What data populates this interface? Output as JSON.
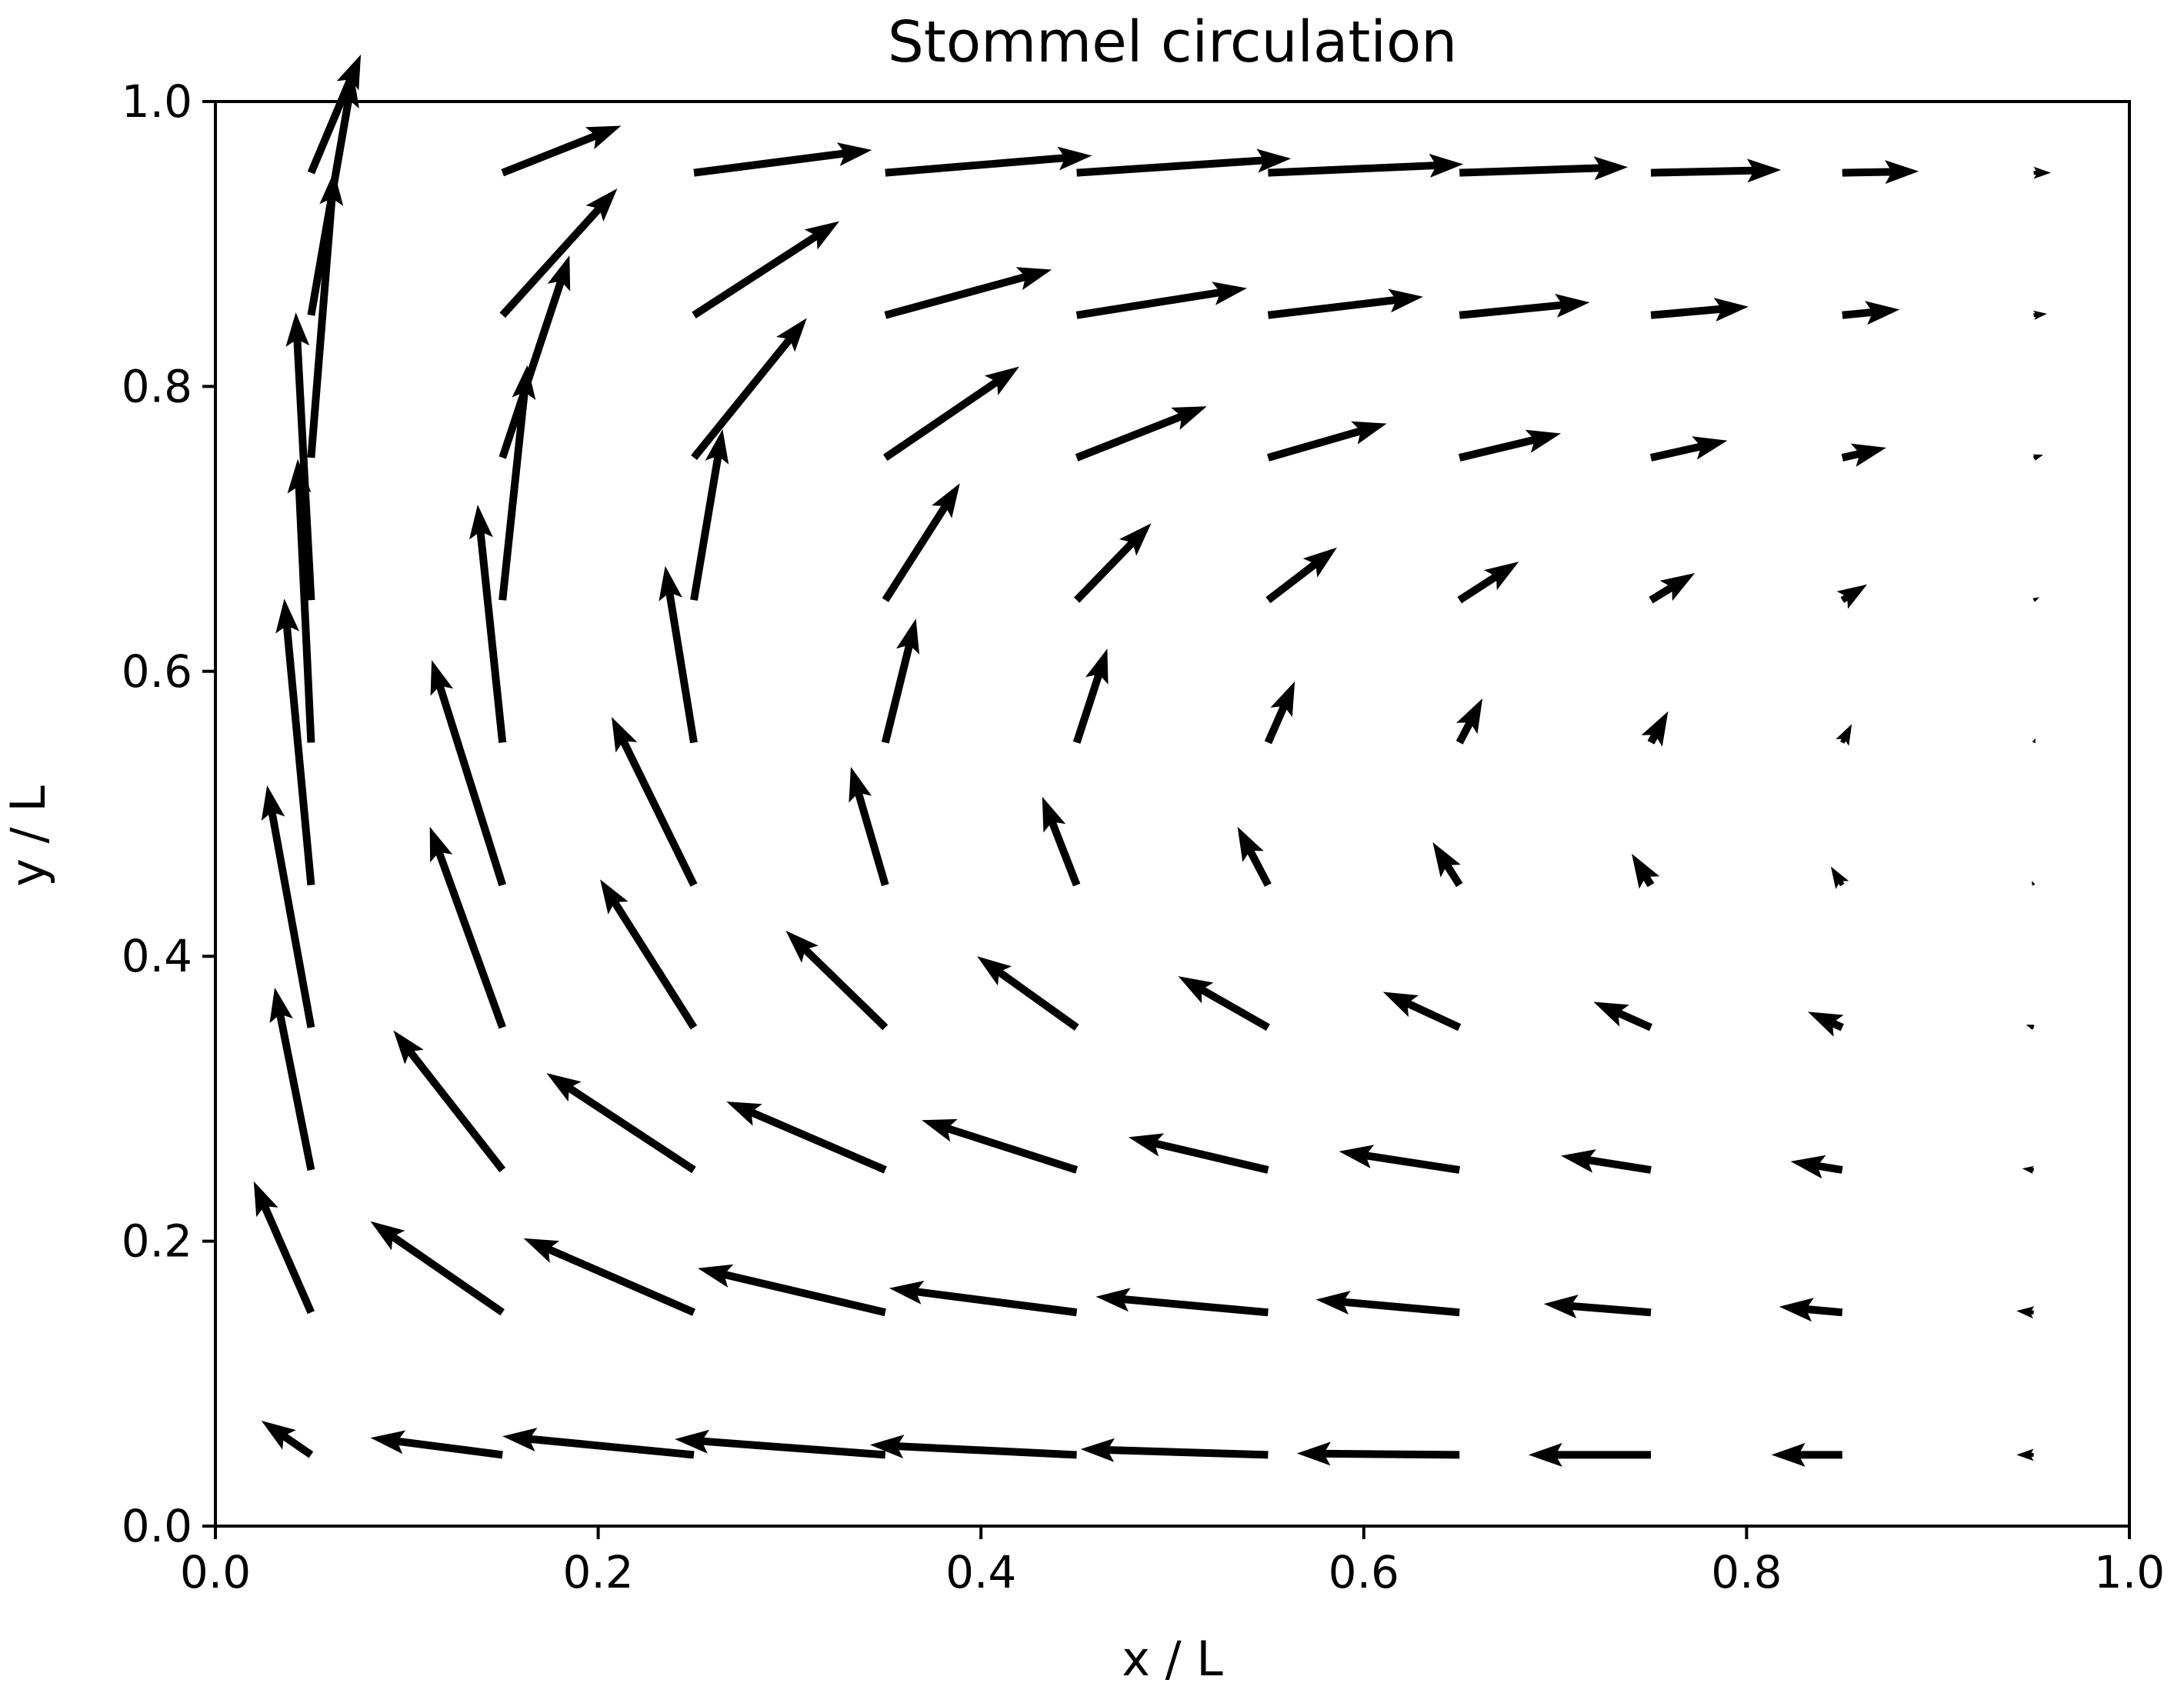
{
  "chart_data": {
    "type": "quiver",
    "title": "Stommel circulation",
    "xlabel": "x / L",
    "ylabel": "y / L",
    "xlim": [
      0.0,
      1.0
    ],
    "ylim": [
      0.0,
      1.0
    ],
    "xticks": [
      "0.0",
      "0.2",
      "0.4",
      "0.6",
      "0.8",
      "1.0"
    ],
    "yticks": [
      "0.0",
      "0.2",
      "0.4",
      "0.6",
      "0.8",
      "1.0"
    ],
    "grid": false,
    "x": [
      0.05,
      0.15,
      0.25,
      0.35,
      0.45,
      0.55,
      0.65,
      0.75,
      0.85,
      0.95
    ],
    "y": [
      0.05,
      0.15,
      0.25,
      0.35,
      0.45,
      0.55,
      0.65,
      0.75,
      0.85,
      0.95
    ],
    "u": [
      [
        -0.026,
        -0.069,
        -0.1,
        -0.11,
        -0.108,
        -0.098,
        -0.085,
        -0.064,
        -0.037,
        -0.009
      ],
      [
        -0.03,
        -0.069,
        -0.089,
        -0.098,
        -0.098,
        -0.09,
        -0.075,
        -0.056,
        -0.033,
        -0.009
      ],
      [
        -0.019,
        -0.057,
        -0.077,
        -0.083,
        -0.081,
        -0.073,
        -0.063,
        -0.047,
        -0.027,
        -0.006
      ],
      [
        -0.023,
        -0.038,
        -0.049,
        -0.052,
        -0.052,
        -0.047,
        -0.04,
        -0.03,
        -0.018,
        -0.004
      ],
      [
        -0.014,
        -0.037,
        -0.043,
        -0.018,
        -0.018,
        -0.016,
        -0.014,
        -0.01,
        -0.006,
        -0.001
      ],
      [
        -0.007,
        -0.013,
        -0.015,
        0.016,
        0.016,
        0.014,
        0.012,
        0.009,
        0.005,
        0.001
      ],
      [
        -0.008,
        0.013,
        0.015,
        0.039,
        0.039,
        0.036,
        0.031,
        0.023,
        0.013,
        0.003
      ],
      [
        0.012,
        0.035,
        0.059,
        0.07,
        0.068,
        0.062,
        0.053,
        0.04,
        0.023,
        0.005
      ],
      [
        0.022,
        0.06,
        0.076,
        0.087,
        0.089,
        0.081,
        0.068,
        0.051,
        0.03,
        0.007
      ],
      [
        0.026,
        0.062,
        0.093,
        0.108,
        0.112,
        0.102,
        0.088,
        0.068,
        0.04,
        0.009
      ]
    ],
    "v": [
      [
        0.024,
        0.012,
        0.013,
        0.011,
        0.007,
        0.004,
        0.001,
        0.0,
        0.0,
        0.0
      ],
      [
        0.092,
        0.064,
        0.052,
        0.031,
        0.017,
        0.011,
        0.009,
        0.006,
        0.004,
        0.001
      ],
      [
        0.128,
        0.098,
        0.068,
        0.048,
        0.035,
        0.023,
        0.013,
        0.01,
        0.006,
        0.001
      ],
      [
        0.17,
        0.141,
        0.104,
        0.068,
        0.05,
        0.036,
        0.025,
        0.018,
        0.011,
        0.002
      ],
      [
        0.201,
        0.158,
        0.118,
        0.083,
        0.062,
        0.041,
        0.03,
        0.022,
        0.013,
        0.003
      ],
      [
        0.199,
        0.167,
        0.124,
        0.087,
        0.066,
        0.043,
        0.031,
        0.022,
        0.013,
        0.003
      ],
      [
        0.202,
        0.165,
        0.12,
        0.082,
        0.054,
        0.037,
        0.027,
        0.019,
        0.011,
        0.002
      ],
      [
        0.201,
        0.142,
        0.098,
        0.064,
        0.036,
        0.024,
        0.017,
        0.012,
        0.007,
        0.002
      ],
      [
        0.17,
        0.089,
        0.066,
        0.032,
        0.019,
        0.013,
        0.009,
        0.006,
        0.004,
        0.001
      ],
      [
        0.083,
        0.033,
        0.016,
        0.012,
        0.01,
        0.006,
        0.004,
        0.002,
        0.001,
        0.0
      ]
    ],
    "arrow_color": "#000000"
  }
}
